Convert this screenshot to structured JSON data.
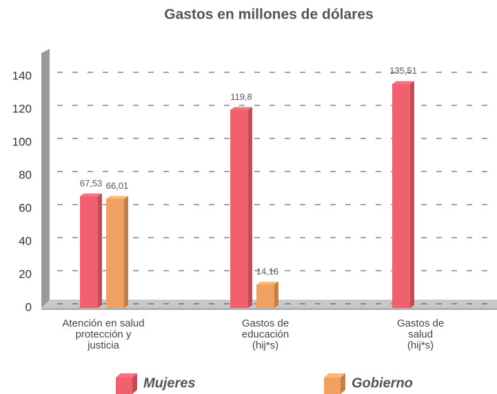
{
  "chart_data": {
    "type": "bar",
    "title": "Gastos en millones de dólares",
    "categories": [
      [
        "Atención en salud",
        "protección y",
        "justicia"
      ],
      [
        "Gastos de",
        "educación",
        "(hij*s)"
      ],
      [
        "Gastos de",
        "salud",
        "(hij*s)"
      ]
    ],
    "series": [
      {
        "name": "Mujeres",
        "color": "#f0606e",
        "values": [
          67.53,
          119.8,
          135.51
        ],
        "value_labels": [
          "67,53",
          "119,8",
          "135,51"
        ]
      },
      {
        "name": "Gobierno",
        "color": "#f0a060",
        "values": [
          66.01,
          14.16,
          null
        ],
        "value_labels": [
          "66,01",
          "14,16",
          null
        ]
      }
    ],
    "ylim": [
      0,
      150
    ],
    "yticks": [
      0,
      20,
      40,
      60,
      80,
      100,
      120,
      140
    ],
    "grid": true
  }
}
